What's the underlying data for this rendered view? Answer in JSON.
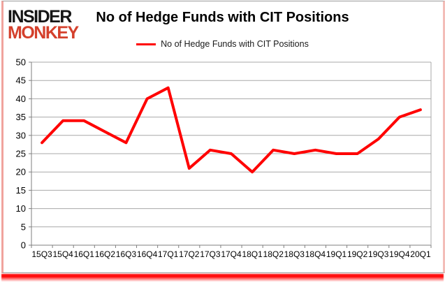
{
  "logo": {
    "line1": "INSIDER",
    "line2": "MONKEY"
  },
  "title": "No of Hedge Funds with CIT Positions",
  "legend": {
    "label": "No of Hedge Funds with CIT Positions",
    "color": "#ff0000"
  },
  "colors": {
    "series_line": "#ff0000",
    "logo_red": "#d4402c",
    "gridline": "#a8a8a8",
    "axis": "#7f7f7f",
    "tick_label": "#000000",
    "frame_border": "#f0a39d",
    "bottom_glow": "#ff0000"
  },
  "chart_data": {
    "type": "line",
    "title": "No of Hedge Funds with CIT Positions",
    "categories": [
      "15Q3",
      "15Q4",
      "16Q1",
      "16Q2",
      "16Q3",
      "16Q4",
      "17Q1",
      "17Q2",
      "17Q3",
      "17Q4",
      "18Q1",
      "18Q2",
      "18Q3",
      "18Q4",
      "19Q1",
      "19Q2",
      "19Q3",
      "19Q4",
      "20Q1"
    ],
    "series": [
      {
        "name": "No of Hedge Funds with CIT Positions",
        "color": "#ff0000",
        "values": [
          28,
          34,
          34,
          31,
          28,
          40,
          43,
          21,
          26,
          25,
          20,
          26,
          25,
          26,
          25,
          25,
          29,
          35,
          37
        ]
      }
    ],
    "xlabel": "",
    "ylabel": "",
    "ylim": [
      0,
      50
    ],
    "ytick_step": 5,
    "yticks": [
      0,
      5,
      10,
      15,
      20,
      25,
      30,
      35,
      40,
      45,
      50
    ],
    "grid": true,
    "legend_position": "top-center"
  }
}
